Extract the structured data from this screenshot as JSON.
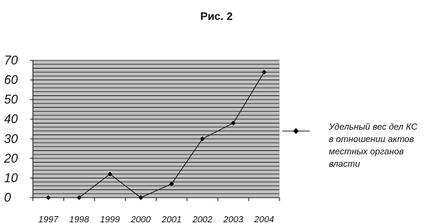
{
  "figure_caption": "Рис. 2",
  "chart_data": {
    "type": "line",
    "title": "",
    "xlabel": "",
    "ylabel": "",
    "categories": [
      "1997",
      "1998",
      "1999",
      "2000",
      "2001",
      "2002",
      "2003",
      "2004"
    ],
    "series": [
      {
        "name": "Удельный вес дел КС\nв отношении актов\nместных органов\nвласти",
        "values": [
          0,
          0,
          12,
          0,
          7,
          30,
          38,
          64
        ]
      }
    ],
    "ylim": [
      0,
      70
    ],
    "yticks": [
      0,
      10,
      20,
      30,
      40,
      50,
      60,
      70
    ],
    "grid": true,
    "legend_position": "right",
    "colors": {
      "plot_background": "#c0c0c0",
      "gridline": "#000000",
      "line": "#000000"
    }
  }
}
